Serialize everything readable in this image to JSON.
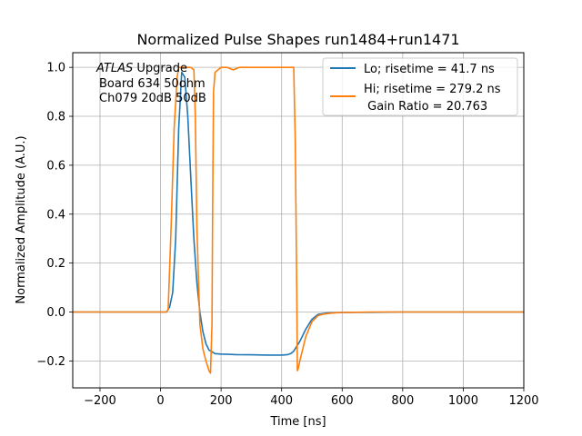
{
  "chart_data": {
    "type": "line",
    "title": "Normalized Pulse Shapes run1484+run1471",
    "xlabel": "Time [ns]",
    "ylabel": "Normalized Amplitude (A.U.)",
    "xlim": [
      -290,
      1200
    ],
    "ylim": [
      -0.31,
      1.06
    ],
    "xticks": [
      -200,
      0,
      200,
      400,
      600,
      800,
      1000,
      1200
    ],
    "xtick_labels": [
      "−200",
      "0",
      "200",
      "400",
      "600",
      "800",
      "1000",
      "1200"
    ],
    "yticks": [
      -0.2,
      0.0,
      0.2,
      0.4,
      0.6,
      0.8,
      1.0
    ],
    "ytick_labels": [
      "−0.2",
      "0.0",
      "0.2",
      "0.4",
      "0.6",
      "0.8",
      "1.0"
    ],
    "grid": true,
    "legend_position": "top-right",
    "annotation": {
      "atlas": "ATLAS",
      "upgrade": " Upgrade",
      "line2": "Board 634 50ohm",
      "line3": "Ch079 20dB 50dB"
    },
    "series": [
      {
        "name": "Lo; risetime = 41.7 ns",
        "color": "#1f77b4",
        "x": [
          -290,
          0,
          20,
          30,
          40,
          50,
          60,
          70,
          80,
          90,
          100,
          110,
          120,
          130,
          140,
          150,
          160,
          180,
          200,
          250,
          300,
          350,
          400,
          420,
          430,
          440,
          460,
          480,
          500,
          520,
          550,
          600,
          700,
          800,
          900,
          1000,
          1100,
          1200
        ],
        "y": [
          0,
          0,
          0.0,
          0.02,
          0.08,
          0.3,
          0.75,
          0.98,
          0.96,
          0.8,
          0.55,
          0.3,
          0.12,
          0.0,
          -0.08,
          -0.13,
          -0.155,
          -0.17,
          -0.172,
          -0.174,
          -0.175,
          -0.176,
          -0.176,
          -0.174,
          -0.17,
          -0.16,
          -0.12,
          -0.07,
          -0.03,
          -0.01,
          -0.004,
          -0.002,
          -0.001,
          0,
          0,
          0,
          0,
          0
        ]
      },
      {
        "name": "Hi; risetime = 279.2 ns",
        "name_line2": " Gain Ratio = 20.763",
        "color": "#ff7f0e",
        "x": [
          -290,
          0,
          20,
          25,
          35,
          45,
          55,
          60,
          70,
          100,
          110,
          115,
          120,
          130,
          140,
          150,
          160,
          165,
          170,
          172,
          175,
          180,
          190,
          200,
          220,
          240,
          260,
          280,
          300,
          320,
          340,
          360,
          380,
          400,
          420,
          440,
          445,
          450,
          452,
          455,
          460,
          470,
          480,
          500,
          520,
          540,
          560,
          580,
          600,
          700,
          800,
          900,
          1000,
          1100,
          1200
        ],
        "y": [
          0,
          0,
          0.0,
          0.01,
          0.35,
          0.75,
          0.96,
          1.0,
          1.0,
          1.0,
          0.99,
          0.8,
          0.35,
          -0.05,
          -0.15,
          -0.2,
          -0.24,
          -0.25,
          -0.05,
          0.4,
          0.9,
          0.98,
          0.99,
          1.0,
          1.0,
          0.99,
          1.0,
          1.0,
          1.0,
          1.0,
          1.0,
          1.0,
          1.0,
          1.0,
          1.0,
          1.0,
          0.7,
          0.1,
          -0.24,
          -0.23,
          -0.2,
          -0.15,
          -0.1,
          -0.04,
          -0.015,
          -0.008,
          -0.005,
          -0.003,
          -0.002,
          0,
          0,
          0,
          0,
          0,
          0
        ]
      }
    ]
  }
}
